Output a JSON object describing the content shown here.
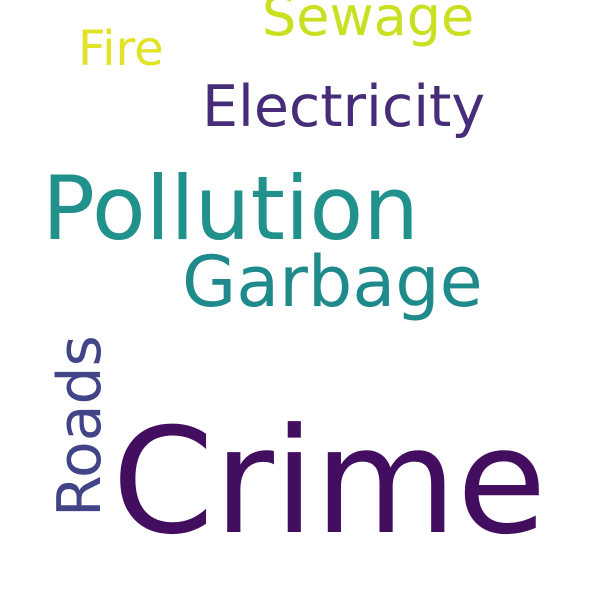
{
  "words": [
    {
      "id": "crime",
      "text": "Crime",
      "color": "#440e60"
    },
    {
      "id": "pollution",
      "text": "Pollution",
      "color": "#21918c"
    },
    {
      "id": "garbage",
      "text": "Garbage",
      "color": "#1f8a8c"
    },
    {
      "id": "electricity",
      "text": "Electricity",
      "color": "#472c7a"
    },
    {
      "id": "sewage",
      "text": "Sewage",
      "color": "#c8e020"
    },
    {
      "id": "fire",
      "text": "Fire",
      "color": "#e1e327"
    },
    {
      "id": "roads",
      "text": "Roads",
      "color": "#414487"
    }
  ]
}
